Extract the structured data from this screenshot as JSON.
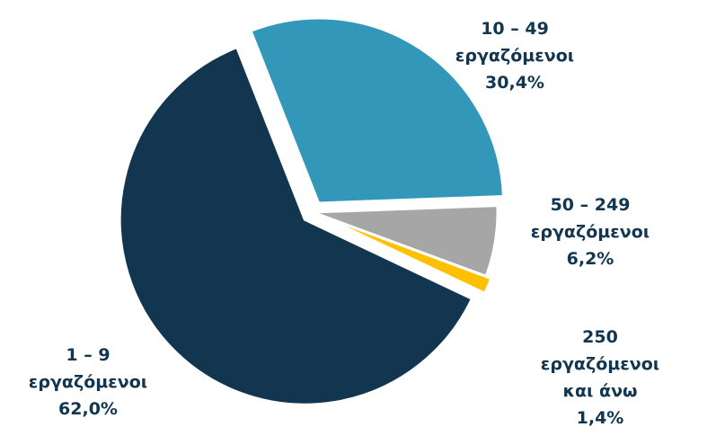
{
  "chart_data": {
    "type": "pie",
    "categories": [
      "1 – 9\nεργαζόμενοι",
      "10 – 49\nεργαζόμενοι",
      "50 – 249 εργαζόμενοι",
      "250 εργαζόμενοι\nκαι άνω"
    ],
    "values": [
      62.0,
      30.4,
      6.2,
      1.4
    ],
    "value_labels": [
      "62,0%",
      "30,4%",
      "6,2%",
      "1,4%"
    ],
    "colors": [
      "#12364f",
      "#3397b9",
      "#a6a6a6",
      "#ffc000"
    ]
  }
}
